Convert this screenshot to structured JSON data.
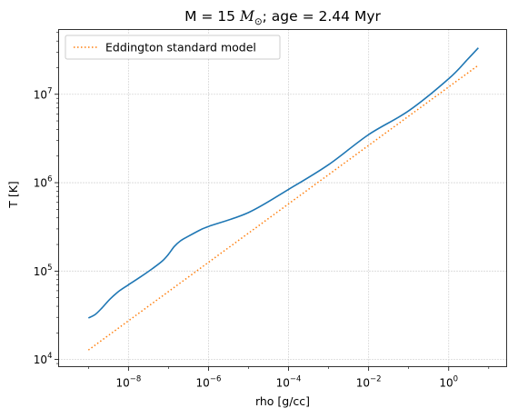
{
  "chart_data": {
    "type": "line",
    "title": {
      "prefix": "M = 15 ",
      "symbol": "M",
      "symbol_subscript": "⊙",
      "suffix": "; age = 2.44 Myr"
    },
    "xlabel": "rho [g/cc]",
    "ylabel": "T [K]",
    "xscale": "log",
    "yscale": "log",
    "xlim": [
      1.8e-10,
      28
    ],
    "ylim": [
      8300,
      54000000.0
    ],
    "grid": true,
    "grid_style": "dotted",
    "legend_position": "top-left",
    "x_ticks": [
      {
        "base": "10",
        "exp": "−8",
        "value": 1e-08
      },
      {
        "base": "10",
        "exp": "−6",
        "value": 1e-06
      },
      {
        "base": "10",
        "exp": "−4",
        "value": 0.0001
      },
      {
        "base": "10",
        "exp": "−2",
        "value": 0.01
      },
      {
        "base": "10",
        "exp": "0",
        "value": 1
      }
    ],
    "y_ticks": [
      {
        "base": "10",
        "exp": "4",
        "value": 10000.0
      },
      {
        "base": "10",
        "exp": "5",
        "value": 100000.0
      },
      {
        "base": "10",
        "exp": "6",
        "value": 1000000.0
      },
      {
        "base": "10",
        "exp": "7",
        "value": 10000000.0
      }
    ],
    "series": [
      {
        "name": "",
        "color": "#1f77b4",
        "style": "solid",
        "points": [
          [
            1e-09,
            29500
          ],
          [
            1.5e-09,
            32500
          ],
          [
            2.2e-09,
            38500
          ],
          [
            3.5e-09,
            48500
          ],
          [
            6e-09,
            60000
          ],
          [
            1e-08,
            70000
          ],
          [
            2e-08,
            86000
          ],
          [
            4e-08,
            107000
          ],
          [
            7e-08,
            130000
          ],
          [
            1e-07,
            155000
          ],
          [
            1.4e-07,
            190000
          ],
          [
            2e-07,
            220000
          ],
          [
            3e-07,
            245000
          ],
          [
            6e-07,
            290000
          ],
          [
            1e-06,
            320000
          ],
          [
            1e-05,
            460000
          ],
          [
            0.0001,
            840000
          ],
          [
            0.001,
            1600000
          ],
          [
            0.01,
            3500000
          ],
          [
            0.1,
            6500000
          ],
          [
            1.0,
            15000000
          ],
          [
            3.0,
            25000000
          ],
          [
            5.5,
            33500000
          ]
        ]
      },
      {
        "name": "Eddington standard model",
        "color": "#ff7f0e",
        "style": "dotted",
        "points": [
          [
            1e-09,
            12800
          ],
          [
            5.5,
            21300000
          ]
        ]
      }
    ]
  }
}
